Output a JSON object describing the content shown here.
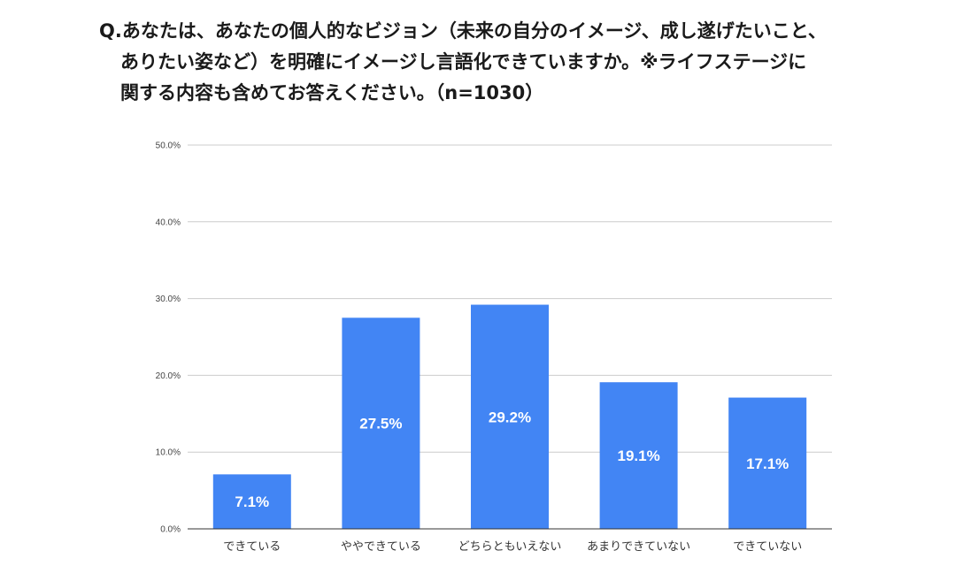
{
  "title": {
    "line1": "Q.あなたは、あなたの個人的なビジョン（未来の自分のイメージ、成し遂げたいこと、",
    "line2": "ありたい姿など）を明確にイメージし言語化できていますか。※ライフステージに",
    "line3": "関する内容も含めてお答えください。（n=1030）"
  },
  "chart_data": {
    "type": "bar",
    "categories": [
      "できている",
      "ややできている",
      "どちらともいえない",
      "あまりできていない",
      "できていない"
    ],
    "values": [
      7.1,
      27.5,
      29.2,
      19.1,
      17.1
    ],
    "data_labels": [
      "7.1%",
      "27.5%",
      "29.2%",
      "19.1%",
      "17.1%"
    ],
    "yticks": [
      "0.0%",
      "10.0%",
      "20.0%",
      "30.0%",
      "40.0%",
      "50.0%"
    ],
    "ylim": [
      0,
      50
    ],
    "grid": true,
    "bar_color": "#4285f4",
    "xlabel": "",
    "ylabel": ""
  }
}
